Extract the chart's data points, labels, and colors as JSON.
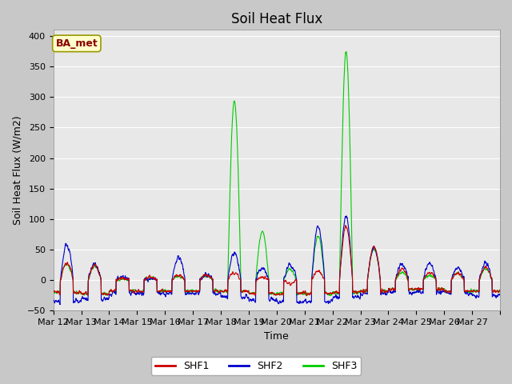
{
  "title": "Soil Heat Flux",
  "ylabel": "Soil Heat Flux (W/m2)",
  "xlabel": "Time",
  "ylim": [
    -50,
    410
  ],
  "yticks": [
    -50,
    0,
    50,
    100,
    150,
    200,
    250,
    300,
    350,
    400
  ],
  "legend_label": "BA_met",
  "series_labels": [
    "SHF1",
    "SHF2",
    "SHF3"
  ],
  "colors": [
    "#cc0000",
    "#0000cc",
    "#00cc00"
  ],
  "linewidth": 0.8,
  "fig_bg": "#c8c8c8",
  "axes_bg": "#e8e8e8",
  "title_fontsize": 12,
  "label_fontsize": 9,
  "tick_fontsize": 8,
  "n_days": 16,
  "points_per_day": 144,
  "start_day": 12,
  "bbox_facecolor": "#ffffcc",
  "bbox_edgecolor": "#999900",
  "annotation_color": "#8B0000",
  "grid_color": "#ffffff",
  "legend_fontsize": 9
}
